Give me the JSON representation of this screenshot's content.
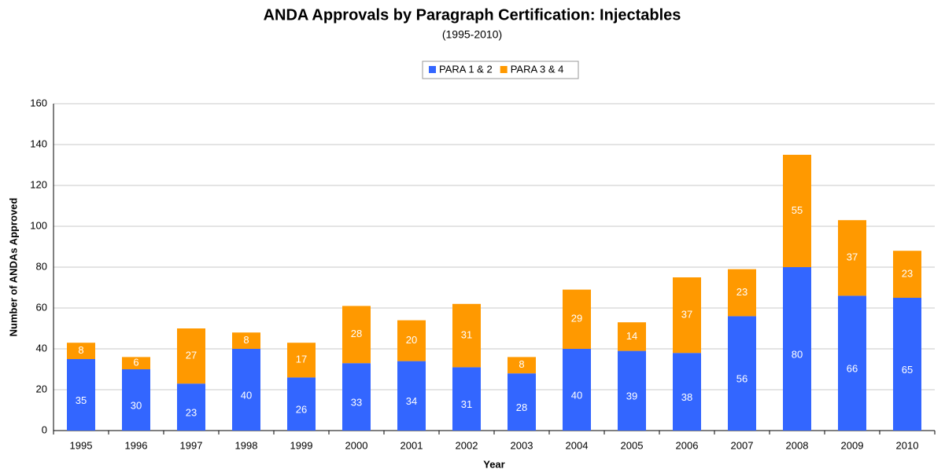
{
  "chart_data": {
    "type": "stacked_bar",
    "title": "ANDA Approvals by Paragraph Certification: Injectables",
    "subtitle": "(1995-2010)",
    "x_label": "Year",
    "y_label": "Number of ANDAs Approved",
    "categories": [
      "1995",
      "1996",
      "1997",
      "1998",
      "1999",
      "2000",
      "2001",
      "2002",
      "2003",
      "2004",
      "2005",
      "2006",
      "2007",
      "2008",
      "2009",
      "2010"
    ],
    "series": [
      {
        "name": "PARA 1 & 2",
        "color": "#3366ff",
        "values": [
          35,
          30,
          23,
          40,
          26,
          33,
          34,
          31,
          28,
          40,
          39,
          38,
          56,
          80,
          66,
          65
        ]
      },
      {
        "name": "PARA 3 & 4",
        "color": "#ff9900",
        "values": [
          8,
          6,
          27,
          8,
          17,
          28,
          20,
          31,
          8,
          29,
          14,
          37,
          23,
          55,
          37,
          23
        ]
      }
    ],
    "ylim": [
      0,
      160
    ],
    "yticks": [
      0,
      20,
      40,
      60,
      80,
      100,
      120,
      140,
      160
    ],
    "grid": true,
    "legend": "top"
  }
}
